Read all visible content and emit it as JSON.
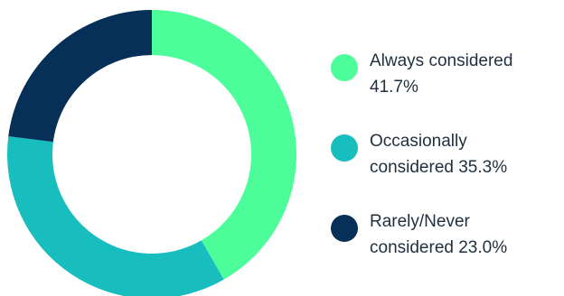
{
  "chart_data": {
    "type": "pie",
    "variant": "donut",
    "title": "",
    "legend_position": "right",
    "slices": [
      {
        "label": "Always considered",
        "value": 41.7,
        "value_label": "41.7%",
        "color": "#4dfd9a"
      },
      {
        "label": "Occasionally considered",
        "value": 35.3,
        "value_label": "35.3%",
        "color": "#18bdbe"
      },
      {
        "label": "Rarely/Never considered",
        "value": 23.0,
        "value_label": "23.0%",
        "color": "#063057"
      }
    ]
  }
}
